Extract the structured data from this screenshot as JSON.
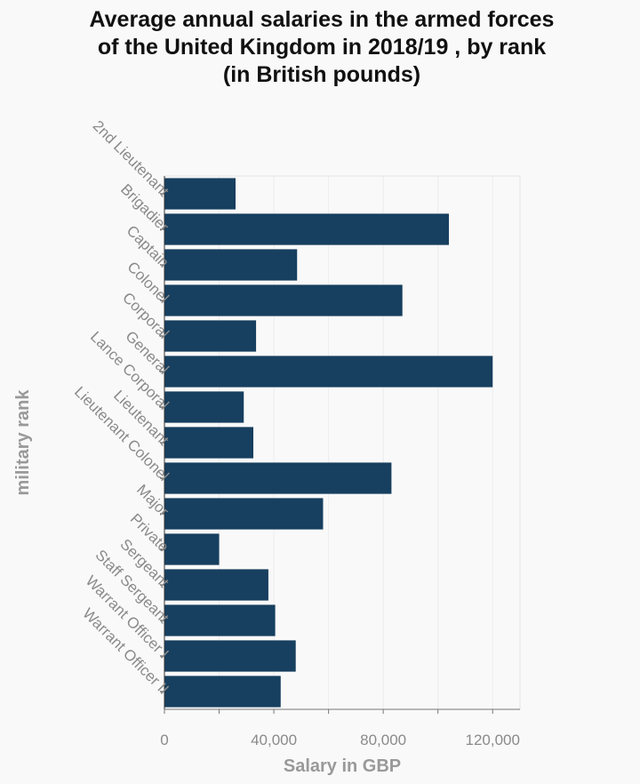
{
  "chart_data": {
    "type": "bar",
    "orientation": "horizontal",
    "title_lines": [
      "Average annual salaries in the armed forces",
      "of the United Kingdom in 2018/19 , by rank",
      "(in British pounds)"
    ],
    "xlabel": "Salary in GBP",
    "ylabel": "military rank",
    "xlim": [
      0,
      130000
    ],
    "xticks": [
      0,
      40000,
      80000,
      120000
    ],
    "xtick_labels": [
      "0",
      "40,000",
      "80,000",
      "120,000"
    ],
    "grid": true,
    "bar_color": "#173f5f",
    "categories": [
      "2nd Lieutenant",
      "Brigadier",
      "Captain",
      "Colonel",
      "Corporal",
      "General",
      "Lance Corporal",
      "Lieutenant",
      "Lieutenant Colonel",
      "Major",
      "Private",
      "Sergeant",
      "Staff Sergeant",
      "Warrant Officer I",
      "Warrant Officer II"
    ],
    "values": [
      26000,
      104000,
      48500,
      87000,
      33500,
      120000,
      29000,
      32500,
      83000,
      58000,
      20000,
      38000,
      40500,
      48000,
      42500
    ]
  }
}
